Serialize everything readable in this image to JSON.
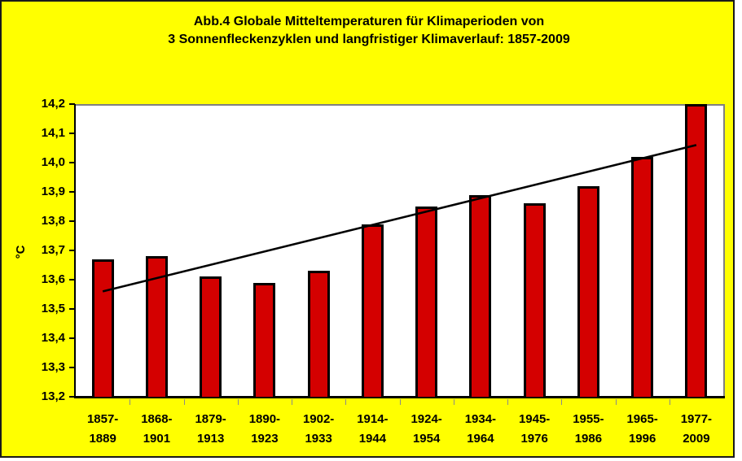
{
  "title": {
    "line1": "Abb.4 Globale Mitteltemperaturen für Klimaperioden von",
    "line2": "3 Sonnenfleckenzyklen und langfristiger Klimaverlauf: 1857-2009"
  },
  "chart_data": {
    "type": "bar",
    "title": "Abb.4 Globale Mitteltemperaturen für Klimaperioden von 3 Sonnenfleckenzyklen und langfristiger Klimaverlauf: 1857-2009",
    "xlabel": "",
    "ylabel": "°C",
    "categories": [
      "1857-1889",
      "1868-1901",
      "1879-1913",
      "1890-1923",
      "1902-1933",
      "1914-1944",
      "1924-1954",
      "1934-1964",
      "1945-1976",
      "1955-1986",
      "1965-1996",
      "1977-2009"
    ],
    "values": [
      13.67,
      13.68,
      13.61,
      13.59,
      13.63,
      13.79,
      13.85,
      13.89,
      13.86,
      13.92,
      14.02,
      14.2
    ],
    "ylim": [
      13.2,
      14.2
    ],
    "ytick_step": 0.1,
    "ytick_labels": [
      "14,2",
      "14,1",
      "14,0",
      "13,9",
      "13,8",
      "13,7",
      "13,6",
      "13,5",
      "13,4",
      "13,3",
      "13,2"
    ],
    "grid": false,
    "legend": false,
    "trendline": {
      "type": "linear",
      "start_index": 0,
      "start_value": 13.56,
      "end_index": 11,
      "end_value": 14.06
    }
  },
  "colors": {
    "canvas_background": "#ffff00",
    "plot_background": "#ffffff",
    "plot_border": "#808080",
    "bar_fill": "#d40000",
    "bar_border": "#000000",
    "axis": "#000000",
    "trend_line": "#000000",
    "frame_border": "#1a1a1a",
    "text": "#000000"
  }
}
